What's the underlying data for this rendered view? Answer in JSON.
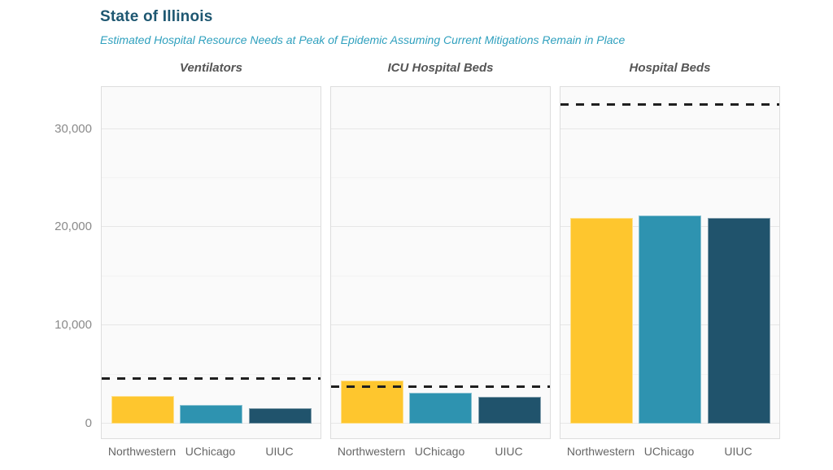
{
  "header": {
    "title": "State of Illinois",
    "subtitle": "Estimated Hospital Resource Needs at Peak of Epidemic Assuming Current Mitigations Remain in Place"
  },
  "chart_data": {
    "type": "bar",
    "title": "State of Illinois",
    "subtitle": "Estimated Hospital Resource Needs at Peak of Epidemic Assuming Current Mitigations Remain in Place",
    "categories": [
      "Northwestern",
      "UChicago",
      "UIUC"
    ],
    "grid": "on",
    "legend": "none",
    "y_axis": {
      "ylim": [
        0,
        34300
      ],
      "ticks": [
        0,
        10000,
        20000,
        30000
      ],
      "tick_labels": [
        "0",
        "10,000",
        "20,000",
        "30,000"
      ],
      "minor_ticks": [
        5000,
        15000,
        25000
      ]
    },
    "series_colors": [
      "#FEC62E",
      "#2E93B0",
      "#20536C"
    ],
    "panels": [
      {
        "title": "Ventilators",
        "values": [
          2800,
          1900,
          1600
        ],
        "capacity_dashed_line": 4600
      },
      {
        "title": "ICU Hospital Beds",
        "values": [
          4350,
          3150,
          2700
        ],
        "capacity_dashed_line": 3800
      },
      {
        "title": "Hospital Beds",
        "values": [
          20900,
          21200,
          20900
        ],
        "capacity_dashed_line": 32500
      }
    ]
  },
  "colors": {
    "title": "#1E5771",
    "subtitle": "#2FA0BE",
    "panel_title": "#555555",
    "axis_text": "#8a8a8a",
    "x_label_text": "#666666",
    "panel_background": "#fafafa",
    "panel_border": "#dddddd",
    "major_grid": "#e7e7e7",
    "minor_grid": "#f3f3f3",
    "capacity_line": "#1f1f1f",
    "bar_northwestern": "#FEC62E",
    "bar_uchicago": "#2E93B0",
    "bar_uiuc": "#20536C"
  }
}
